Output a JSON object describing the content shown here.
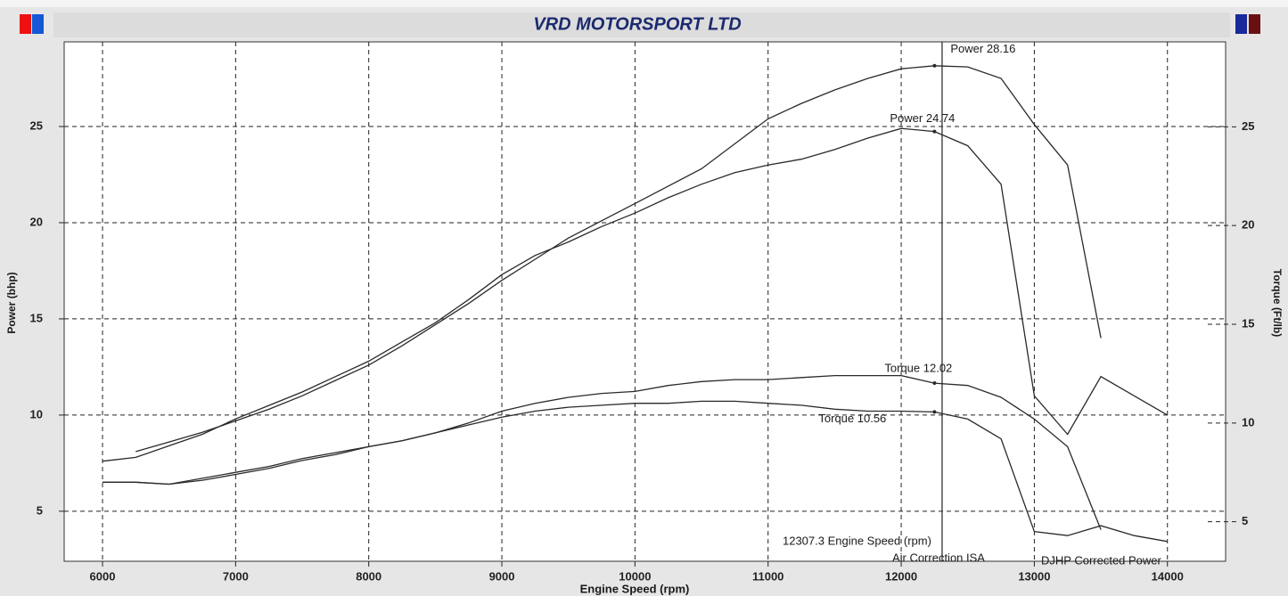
{
  "chart_data": {
    "type": "line",
    "title": "VRD MOTORSPORT LTD",
    "x_label": "Engine Speed (rpm)",
    "y_label": "Power (bhp)",
    "y2_label": "Torque (Ft/lb)",
    "x": [
      6000,
      6250,
      6500,
      6750,
      7000,
      7250,
      7500,
      7750,
      8000,
      8250,
      8500,
      8750,
      9000,
      9250,
      9500,
      9750,
      10000,
      10250,
      10500,
      10750,
      11000,
      11250,
      11500,
      11750,
      12000,
      12250,
      12500,
      12750,
      13000,
      13250,
      13500,
      13750,
      14000
    ],
    "xlim": [
      5712,
      14437
    ],
    "xticks": [
      6000,
      7000,
      8000,
      9000,
      10000,
      11000,
      12000,
      13000,
      14000
    ],
    "ylim": [
      2.4,
      29.4
    ],
    "yticks": [
      5,
      10,
      15,
      20,
      25
    ],
    "y2lim": [
      3.0,
      29.3
    ],
    "y2ticks": [
      5,
      10,
      15,
      20,
      25
    ],
    "grid": true,
    "series": [
      {
        "name": "Power",
        "label": "Power 28.16",
        "color": "#2a2a2a",
        "axis": "y",
        "values": [
          null,
          8.1,
          8.6,
          9.1,
          9.7,
          10.3,
          11.0,
          11.8,
          12.6,
          13.6,
          14.7,
          15.8,
          17.0,
          18.1,
          19.2,
          20.1,
          21.0,
          21.9,
          22.8,
          24.1,
          25.4,
          26.2,
          26.9,
          27.5,
          28.0,
          28.16,
          28.1,
          27.5,
          25.1,
          23.0,
          14.0,
          null,
          null
        ]
      },
      {
        "name": "Power",
        "label": "Power 24.74",
        "color": "#2a2a2a",
        "axis": "y",
        "values": [
          7.6,
          7.8,
          8.4,
          9.0,
          9.8,
          10.5,
          11.2,
          12.0,
          12.8,
          13.8,
          14.8,
          16.0,
          17.3,
          18.3,
          19.0,
          19.8,
          20.5,
          21.3,
          22.0,
          22.6,
          23.0,
          23.3,
          23.8,
          24.4,
          24.9,
          24.74,
          24.0,
          22.0,
          11.0,
          9.0,
          12.0,
          11.0,
          10.0
        ]
      },
      {
        "name": "Torque",
        "label": "Torque 12.02",
        "color": "#2a2a2a",
        "axis": "y2",
        "values": [
          7.0,
          7.0,
          6.9,
          7.2,
          7.5,
          7.8,
          8.2,
          8.5,
          8.8,
          9.1,
          9.5,
          10.0,
          10.6,
          11.0,
          11.3,
          11.5,
          11.6,
          11.9,
          12.1,
          12.2,
          12.2,
          12.3,
          12.4,
          12.4,
          12.4,
          12.02,
          11.9,
          11.3,
          10.2,
          8.8,
          4.6,
          null,
          null
        ]
      },
      {
        "name": "Torque",
        "label": "Torque 10.56",
        "color": "#2a2a2a",
        "axis": "y2",
        "values": [
          7.0,
          7.0,
          6.9,
          7.1,
          7.4,
          7.7,
          8.1,
          8.4,
          8.8,
          9.1,
          9.5,
          9.9,
          10.3,
          10.6,
          10.8,
          10.9,
          11.0,
          11.0,
          11.1,
          11.1,
          11.0,
          10.9,
          10.7,
          10.6,
          10.6,
          10.56,
          10.2,
          9.2,
          4.5,
          4.3,
          4.8,
          4.3,
          4.0
        ]
      }
    ],
    "cursor": {
      "value": 12307.3,
      "label": "12307.3 Engine Speed (rpm)"
    },
    "notes": [
      "Air Correction ISA",
      "DJHP Corrected Power"
    ]
  }
}
